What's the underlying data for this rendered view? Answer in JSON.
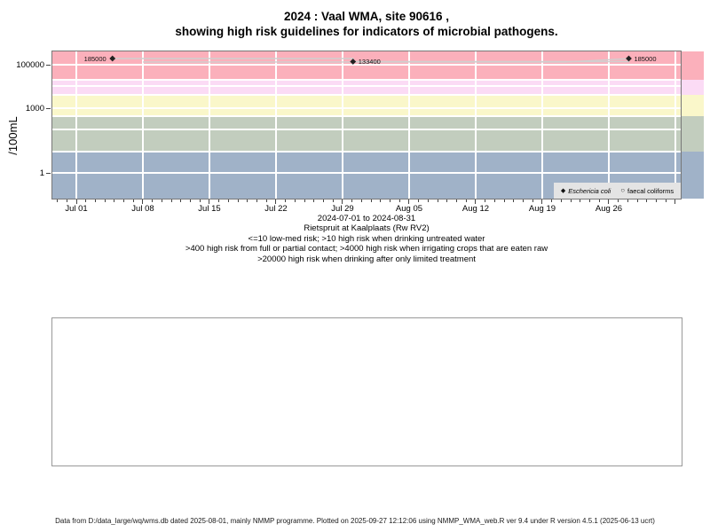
{
  "chart_data": {
    "type": "scatter",
    "title_lines": [
      "2024 : Vaal WMA, site 90616 ,",
      "showing high risk guidelines for indicators of microbial pathogens."
    ],
    "y_axis": {
      "label": "/100mL",
      "scale": "log",
      "ticks": [
        {
          "value": 1,
          "label": "1"
        },
        {
          "value": 1000,
          "label": "1000"
        },
        {
          "value": 100000,
          "label": "100000"
        }
      ],
      "grid_decades": [
        1,
        10,
        100,
        1000,
        10000,
        100000
      ],
      "approx_range": [
        0.06,
        430000
      ]
    },
    "x_axis": {
      "tick_labels": [
        "Jul 01",
        "Jul 08",
        "Jul 15",
        "Jul 22",
        "Jul 29",
        "Aug 05",
        "Aug 12",
        "Aug 19",
        "Aug 26"
      ],
      "tick_spacing_days": 7,
      "range_label": "2024-07-01 to 2024-08-31"
    },
    "risk_bands": [
      {
        "key": "gt-20000",
        "min": 20000,
        "max": 430000,
        "color": "#FBB0BB",
        "meaning": ">20000 high risk when drinking after only limited treatment"
      },
      {
        "key": "4000-20000",
        "min": 4000,
        "max": 20000,
        "color": "#FBDBF5",
        "meaning": ">4000 high risk when irrigating crops that are eaten raw"
      },
      {
        "key": "400-4000",
        "min": 400,
        "max": 4000,
        "color": "#FAF7CA",
        "meaning": ">400 high risk from full or partial contact"
      },
      {
        "key": "10-400",
        "min": 10,
        "max": 400,
        "color": "#C2CDBE",
        "meaning": ">10 high risk when drinking untreated water"
      },
      {
        "key": "le-10",
        "min": 0.06,
        "max": 10,
        "color": "#A0B2C8",
        "meaning": "<=10 low-med risk"
      }
    ],
    "series": [
      {
        "name": "Eschericia coli",
        "marker": "filled-diamond",
        "line_style": "step-after",
        "points": [
          {
            "day_offset": 3.8,
            "value": 185000,
            "label": "185000",
            "label_side": "left"
          },
          {
            "day_offset": 29.1,
            "value": 133400,
            "label": "133400",
            "label_side": "right"
          },
          {
            "day_offset": 58.1,
            "value": 185000,
            "label": "185000",
            "label_side": "right"
          }
        ]
      },
      {
        "name": "faecal coliforms",
        "marker": "open-circle",
        "line_style": "linear",
        "points": [
          {
            "day_offset": 7,
            "value": 129000,
            "estimated": true
          },
          {
            "day_offset": 51.5,
            "value": 129000,
            "estimated": true
          },
          {
            "day_offset": 58,
            "value": 182000,
            "estimated": true
          }
        ]
      }
    ],
    "caption": {
      "station": "Rietspruit at Kaalplaats (Rw RV2)",
      "risk_line1": "<=10 low-med risk; >10 high risk when drinking untreated water",
      "risk_line2": ">400 high risk from full or partial contact; >4000 high risk when irrigating crops that are eaten raw",
      "risk_line3": ">20000 high risk when drinking after only limited treatment"
    },
    "legend_position": "bottom-right-inside"
  },
  "footer": {
    "text": "Data from D:/data_large/wq/wms.db dated 2025-08-01, mainly NMMP programme. Plotted on 2025-09-27 12:12:06 using NMMP_WMA_web.R ver 9.4 under R version 4.5.1 (2025-06-13 ucrt)"
  }
}
